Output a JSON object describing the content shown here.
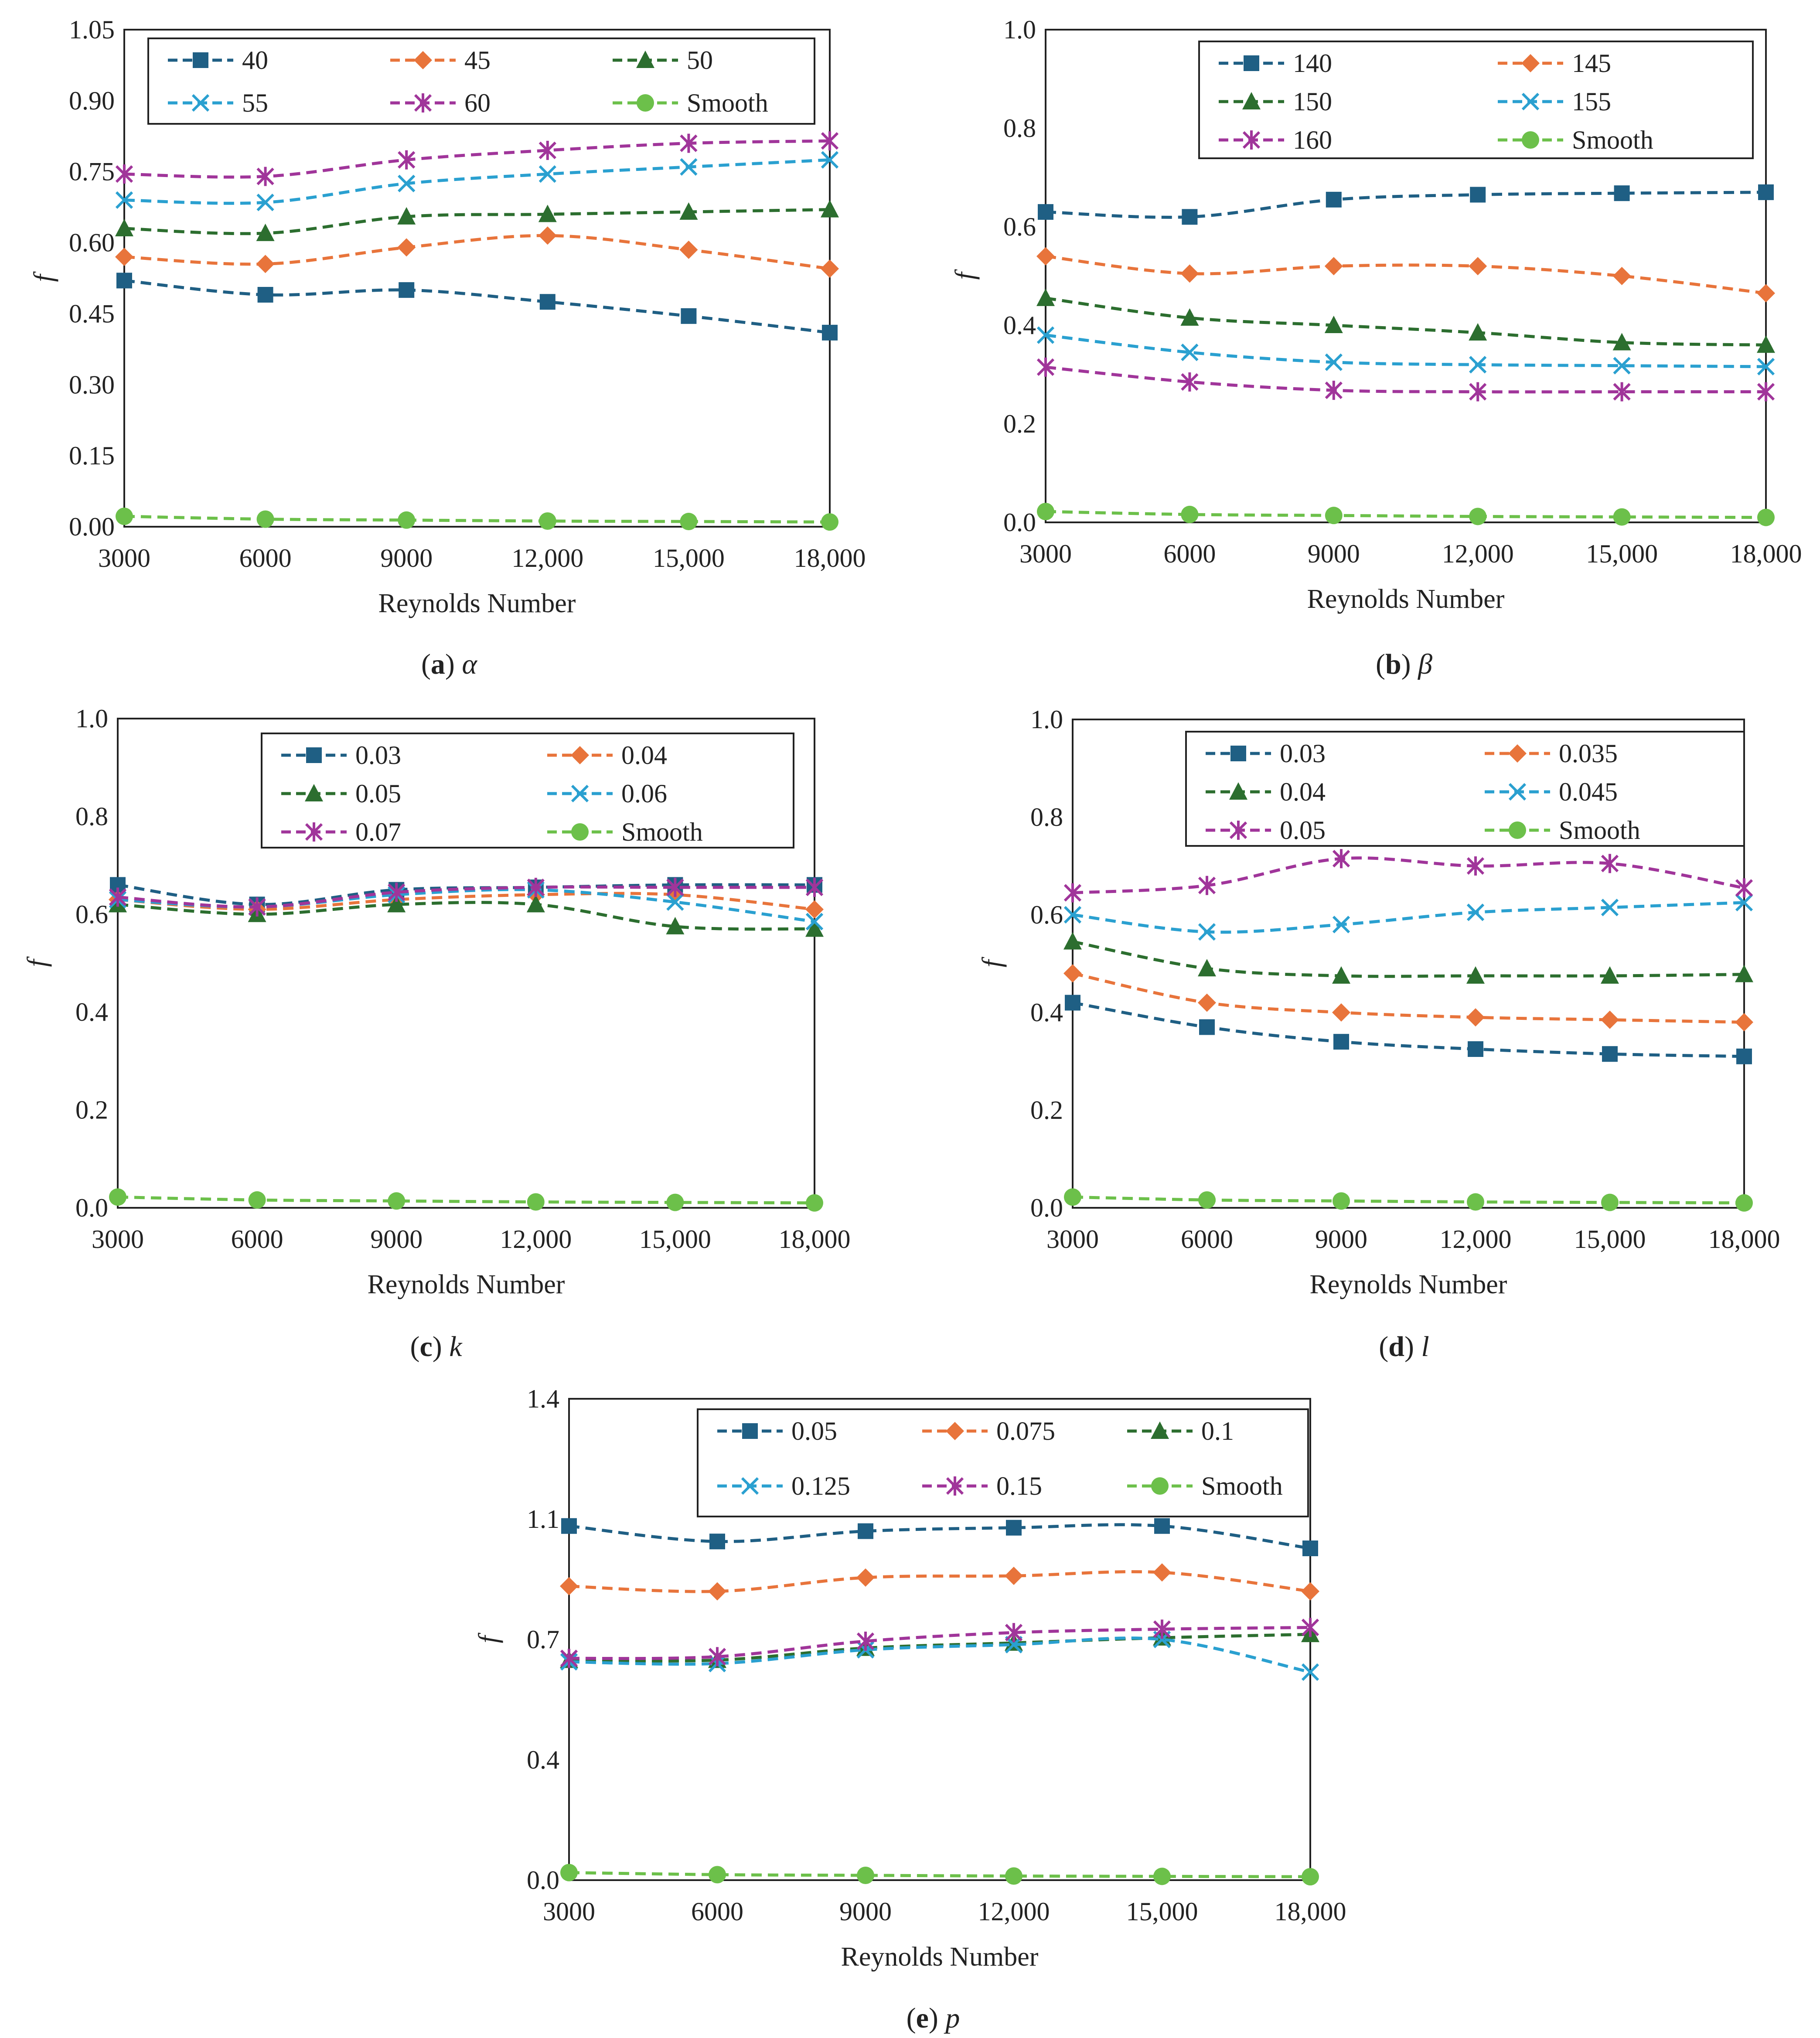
{
  "chart_data": [
    {
      "type": "line",
      "panel": "a",
      "caption_letter": "a",
      "caption_symbol": "α",
      "xlabel": "Reynolds Number",
      "ylabel": "f",
      "x": [
        3000,
        6000,
        9000,
        12000,
        15000,
        18000
      ],
      "x_tick_labels": [
        "3000",
        "6000",
        "9000",
        "12,000",
        "15,000",
        "18,000"
      ],
      "ylim": [
        0,
        1.05
      ],
      "y_ticks": [
        0,
        0.15,
        0.3,
        0.45,
        0.6,
        0.75,
        0.9,
        1.05
      ],
      "y_tick_labels": [
        "0.00",
        "0.15",
        "0.30",
        "0.45",
        "0.60",
        "0.75",
        "0.90",
        "1.05"
      ],
      "grid": false,
      "legend_position": "top",
      "legend_columns": 3,
      "series": [
        {
          "name": "40",
          "color": "#1f5f84",
          "marker": "square",
          "values": [
            0.52,
            0.49,
            0.5,
            0.475,
            0.445,
            0.41
          ]
        },
        {
          "name": "45",
          "color": "#e8743b",
          "marker": "diamond",
          "values": [
            0.57,
            0.555,
            0.59,
            0.615,
            0.585,
            0.545
          ]
        },
        {
          "name": "50",
          "color": "#2c6e2f",
          "marker": "triangle",
          "values": [
            0.63,
            0.62,
            0.655,
            0.66,
            0.665,
            0.67
          ]
        },
        {
          "name": "55",
          "color": "#2aa0d0",
          "marker": "x",
          "values": [
            0.69,
            0.685,
            0.725,
            0.745,
            0.76,
            0.775
          ]
        },
        {
          "name": "60",
          "color": "#a0359a",
          "marker": "star",
          "values": [
            0.745,
            0.74,
            0.775,
            0.795,
            0.81,
            0.815
          ]
        },
        {
          "name": "Smooth",
          "color": "#6cc04a",
          "marker": "circle",
          "values": [
            0.022,
            0.016,
            0.014,
            0.012,
            0.011,
            0.01
          ]
        }
      ]
    },
    {
      "type": "line",
      "panel": "b",
      "caption_letter": "b",
      "caption_symbol": "β",
      "xlabel": "Reynolds Number",
      "ylabel": "f",
      "x": [
        3000,
        6000,
        9000,
        12000,
        15000,
        18000
      ],
      "x_tick_labels": [
        "3000",
        "6000",
        "9000",
        "12,000",
        "15,000",
        "18,000"
      ],
      "ylim": [
        0,
        1.0
      ],
      "y_ticks": [
        0,
        0.2,
        0.4,
        0.6,
        0.8,
        1.0
      ],
      "y_tick_labels": [
        "0.0",
        "0.2",
        "0.4",
        "0.6",
        "0.8",
        "1.0"
      ],
      "grid": false,
      "legend_position": "top-right",
      "legend_columns": 2,
      "series": [
        {
          "name": "140",
          "color": "#1f5f84",
          "marker": "square",
          "values": [
            0.63,
            0.62,
            0.655,
            0.665,
            0.668,
            0.67
          ]
        },
        {
          "name": "145",
          "color": "#e8743b",
          "marker": "diamond",
          "values": [
            0.54,
            0.505,
            0.52,
            0.52,
            0.5,
            0.465
          ]
        },
        {
          "name": "150",
          "color": "#2c6e2f",
          "marker": "triangle",
          "values": [
            0.455,
            0.415,
            0.4,
            0.385,
            0.365,
            0.36
          ]
        },
        {
          "name": "155",
          "color": "#2aa0d0",
          "marker": "x",
          "values": [
            0.38,
            0.345,
            0.325,
            0.32,
            0.318,
            0.316
          ]
        },
        {
          "name": "160",
          "color": "#a0359a",
          "marker": "star",
          "values": [
            0.315,
            0.285,
            0.268,
            0.265,
            0.265,
            0.265
          ]
        },
        {
          "name": "Smooth",
          "color": "#6cc04a",
          "marker": "circle",
          "values": [
            0.022,
            0.016,
            0.014,
            0.012,
            0.011,
            0.01
          ]
        }
      ]
    },
    {
      "type": "line",
      "panel": "c",
      "caption_letter": "c",
      "caption_symbol": "k",
      "xlabel": "Reynolds Number",
      "ylabel": "f",
      "x": [
        3000,
        6000,
        9000,
        12000,
        15000,
        18000
      ],
      "x_tick_labels": [
        "3000",
        "6000",
        "9000",
        "12,000",
        "15,000",
        "18,000"
      ],
      "ylim": [
        0,
        1.0
      ],
      "y_ticks": [
        0,
        0.2,
        0.4,
        0.6,
        0.8,
        1.0
      ],
      "y_tick_labels": [
        "0.0",
        "0.2",
        "0.4",
        "0.6",
        "0.8",
        "1.0"
      ],
      "grid": false,
      "legend_position": "top-right",
      "legend_columns": 2,
      "series": [
        {
          "name": "0.03",
          "color": "#1f5f84",
          "marker": "square",
          "values": [
            0.66,
            0.62,
            0.65,
            0.655,
            0.66,
            0.66
          ]
        },
        {
          "name": "0.04",
          "color": "#e8743b",
          "marker": "diamond",
          "values": [
            0.63,
            0.61,
            0.63,
            0.64,
            0.64,
            0.61
          ]
        },
        {
          "name": "0.05",
          "color": "#2c6e2f",
          "marker": "triangle",
          "values": [
            0.62,
            0.6,
            0.62,
            0.62,
            0.575,
            0.57
          ]
        },
        {
          "name": "0.06",
          "color": "#2aa0d0",
          "marker": "x",
          "values": [
            0.63,
            0.615,
            0.64,
            0.65,
            0.625,
            0.585
          ]
        },
        {
          "name": "0.07",
          "color": "#a0359a",
          "marker": "star",
          "values": [
            0.635,
            0.615,
            0.645,
            0.655,
            0.655,
            0.655
          ]
        },
        {
          "name": "Smooth",
          "color": "#6cc04a",
          "marker": "circle",
          "values": [
            0.022,
            0.016,
            0.014,
            0.012,
            0.011,
            0.01
          ]
        }
      ]
    },
    {
      "type": "line",
      "panel": "d",
      "caption_letter": "d",
      "caption_symbol": "l",
      "xlabel": "Reynolds Number",
      "ylabel": "f",
      "x": [
        3000,
        6000,
        9000,
        12000,
        15000,
        18000
      ],
      "x_tick_labels": [
        "3000",
        "6000",
        "9000",
        "12,000",
        "15,000",
        "18,000"
      ],
      "ylim": [
        0,
        1.0
      ],
      "y_ticks": [
        0,
        0.2,
        0.4,
        0.6,
        0.8,
        1.0
      ],
      "y_tick_labels": [
        "0.0",
        "0.2",
        "0.4",
        "0.6",
        "0.8",
        "1.0"
      ],
      "grid": false,
      "legend_position": "top-right",
      "legend_columns": 2,
      "series": [
        {
          "name": "0.03",
          "color": "#1f5f84",
          "marker": "square",
          "values": [
            0.42,
            0.37,
            0.34,
            0.325,
            0.315,
            0.31
          ]
        },
        {
          "name": "0.035",
          "color": "#e8743b",
          "marker": "diamond",
          "values": [
            0.48,
            0.42,
            0.4,
            0.39,
            0.385,
            0.38
          ]
        },
        {
          "name": "0.04",
          "color": "#2c6e2f",
          "marker": "triangle",
          "values": [
            0.545,
            0.49,
            0.475,
            0.475,
            0.475,
            0.478
          ]
        },
        {
          "name": "0.045",
          "color": "#2aa0d0",
          "marker": "x",
          "values": [
            0.6,
            0.565,
            0.58,
            0.605,
            0.615,
            0.625
          ]
        },
        {
          "name": "0.05",
          "color": "#a0359a",
          "marker": "star",
          "values": [
            0.645,
            0.66,
            0.715,
            0.7,
            0.705,
            0.655
          ]
        },
        {
          "name": "Smooth",
          "color": "#6cc04a",
          "marker": "circle",
          "values": [
            0.022,
            0.016,
            0.014,
            0.012,
            0.011,
            0.01
          ]
        }
      ]
    },
    {
      "type": "line",
      "panel": "e",
      "caption_letter": "e",
      "caption_symbol": "p",
      "xlabel": "Reynolds Number",
      "ylabel": "f",
      "x": [
        3000,
        6000,
        9000,
        12000,
        15000,
        18000
      ],
      "x_tick_labels": [
        "3000",
        "6000",
        "9000",
        "12,000",
        "15,000",
        "18,000"
      ],
      "ylim": [
        0,
        1.4
      ],
      "y_ticks": [
        0,
        0.35,
        0.7,
        1.05,
        1.4
      ],
      "y_tick_labels": [
        "0.0",
        "0.4",
        "0.7",
        "1.1",
        "1.4"
      ],
      "grid": false,
      "legend_position": "top-right",
      "legend_columns": 3,
      "series": [
        {
          "name": "0.05",
          "color": "#1f5f84",
          "marker": "square",
          "values": [
            1.03,
            0.985,
            1.015,
            1.025,
            1.03,
            0.965
          ]
        },
        {
          "name": "0.075",
          "color": "#e8743b",
          "marker": "diamond",
          "values": [
            0.855,
            0.84,
            0.88,
            0.885,
            0.895,
            0.84
          ]
        },
        {
          "name": "0.1",
          "color": "#2c6e2f",
          "marker": "triangle",
          "values": [
            0.64,
            0.64,
            0.675,
            0.69,
            0.705,
            0.715
          ]
        },
        {
          "name": "0.125",
          "color": "#2aa0d0",
          "marker": "x",
          "values": [
            0.635,
            0.63,
            0.67,
            0.685,
            0.7,
            0.605
          ]
        },
        {
          "name": "0.15",
          "color": "#a0359a",
          "marker": "star",
          "values": [
            0.645,
            0.65,
            0.695,
            0.72,
            0.73,
            0.735
          ]
        },
        {
          "name": "Smooth",
          "color": "#6cc04a",
          "marker": "circle",
          "values": [
            0.022,
            0.016,
            0.014,
            0.012,
            0.011,
            0.01
          ]
        }
      ]
    }
  ]
}
